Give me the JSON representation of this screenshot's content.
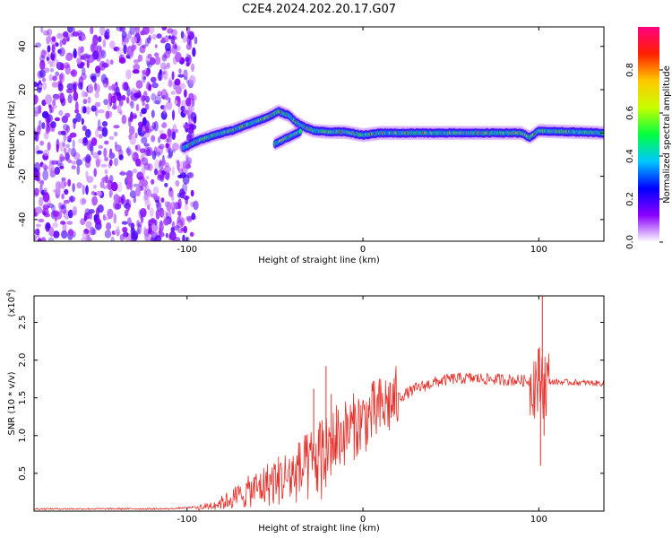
{
  "title": "C2E4.2024.202.20.17.G07",
  "chart_data": [
    {
      "type": "heatmap",
      "xlabel": "Height of straight line (km)",
      "ylabel": "Frequency (Hz)",
      "xlim": [
        -187,
        137
      ],
      "ylim": [
        -50,
        49
      ],
      "xticks": [
        -100,
        0,
        100
      ],
      "yticks": [
        -40,
        -20,
        0,
        20,
        40
      ],
      "noise_region_x": [
        -187,
        -95
      ],
      "ridge": [
        {
          "x": -102,
          "y": -7
        },
        {
          "x": -95,
          "y": -4
        },
        {
          "x": -85,
          "y": -1
        },
        {
          "x": -75,
          "y": 1
        },
        {
          "x": -65,
          "y": 4
        },
        {
          "x": -55,
          "y": 7
        },
        {
          "x": -48,
          "y": 10
        },
        {
          "x": -42,
          "y": 8
        },
        {
          "x": -38,
          "y": 5
        },
        {
          "x": -34,
          "y": 3
        },
        {
          "x": -28,
          "y": 1
        },
        {
          "x": -20,
          "y": 0.5
        },
        {
          "x": -10,
          "y": 0.5
        },
        {
          "x": 0,
          "y": -1
        },
        {
          "x": 10,
          "y": 0
        },
        {
          "x": 30,
          "y": 0
        },
        {
          "x": 60,
          "y": 0
        },
        {
          "x": 90,
          "y": 0
        },
        {
          "x": 95,
          "y": -2
        },
        {
          "x": 100,
          "y": 1
        },
        {
          "x": 137,
          "y": 0
        }
      ],
      "secondary_ridge": [
        {
          "x": -50,
          "y": -5
        },
        {
          "x": -45,
          "y": -3
        },
        {
          "x": -40,
          "y": -1
        },
        {
          "x": -35,
          "y": 1
        }
      ],
      "colorbar": {
        "label": "Normalized spectral amplitude",
        "ticks": [
          0.0,
          0.2,
          0.4,
          0.6,
          0.8
        ],
        "tick_labels": [
          "0.0",
          "0.2",
          "0.4",
          "0.6",
          "0.8"
        ],
        "range": [
          0,
          1
        ],
        "colormap": [
          "#ffffff",
          "#8a00ff",
          "#0000ff",
          "#00c8ff",
          "#00ff40",
          "#c8ff00",
          "#ffc800",
          "#ff2000",
          "#ff0080"
        ]
      }
    },
    {
      "type": "line",
      "xlabel": "Height of straight line (km)",
      "ylabel": "SNR (10 * v/v)",
      "multiplier": "(x10",
      "multiplier_exp": "4",
      "multiplier_close": ")",
      "xlim": [
        -187,
        137
      ],
      "ylim": [
        0,
        2.85
      ],
      "xticks": [
        -100,
        0,
        100
      ],
      "yticks": [
        0.5,
        1.0,
        1.5,
        2.0,
        2.5
      ],
      "ytick_labels": [
        "0.5",
        "1.0",
        "1.5",
        "2.0",
        "2.5"
      ],
      "color": "#e8302a",
      "envelope": [
        {
          "x": -187,
          "y": 0.03
        },
        {
          "x": -110,
          "y": 0.03
        },
        {
          "x": -90,
          "y": 0.06
        },
        {
          "x": -80,
          "y": 0.12
        },
        {
          "x": -70,
          "y": 0.22
        },
        {
          "x": -60,
          "y": 0.32
        },
        {
          "x": -50,
          "y": 0.42
        },
        {
          "x": -40,
          "y": 0.5
        },
        {
          "x": -30,
          "y": 0.62
        },
        {
          "x": -20,
          "y": 0.85
        },
        {
          "x": -10,
          "y": 1.05
        },
        {
          "x": 0,
          "y": 1.2
        },
        {
          "x": 10,
          "y": 1.35
        },
        {
          "x": 20,
          "y": 1.5
        },
        {
          "x": 30,
          "y": 1.62
        },
        {
          "x": 40,
          "y": 1.7
        },
        {
          "x": 50,
          "y": 1.75
        },
        {
          "x": 60,
          "y": 1.76
        },
        {
          "x": 70,
          "y": 1.75
        },
        {
          "x": 80,
          "y": 1.74
        },
        {
          "x": 90,
          "y": 1.73
        },
        {
          "x": 100,
          "y": 1.72
        },
        {
          "x": 110,
          "y": 1.71
        },
        {
          "x": 125,
          "y": 1.7
        },
        {
          "x": 137,
          "y": 1.69
        }
      ],
      "spikes": [
        {
          "x": -28,
          "y": 1.62
        },
        {
          "x": -21,
          "y": 1.92
        },
        {
          "x": -18,
          "y": 1.55
        },
        {
          "x": -15,
          "y": 1.4
        },
        {
          "x": 100,
          "y": 2.15
        },
        {
          "x": 101,
          "y": 0.6
        },
        {
          "x": 102,
          "y": 2.85
        },
        {
          "x": 103,
          "y": 1.0
        }
      ]
    }
  ]
}
